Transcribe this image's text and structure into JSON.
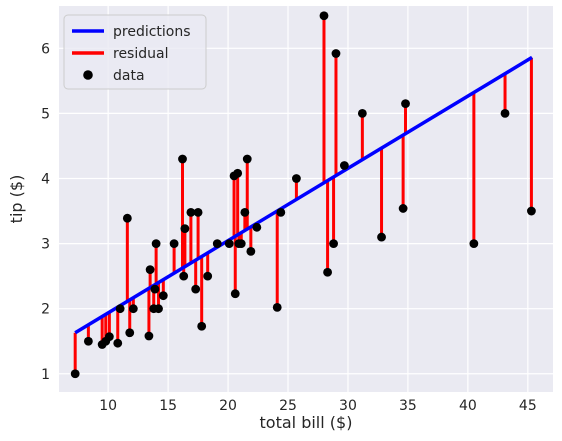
{
  "chart_data": {
    "type": "scatter",
    "xlabel": "total bill ($)",
    "ylabel": "tip ($)",
    "xlim": [
      5.9,
      47.1
    ],
    "ylim": [
      0.72,
      6.65
    ],
    "x_ticks": [
      10,
      15,
      20,
      25,
      30,
      35,
      40,
      45
    ],
    "y_ticks": [
      1,
      2,
      3,
      4,
      5,
      6
    ],
    "grid": true,
    "legend_position": "top-left",
    "regression_line": {
      "x": [
        7.25,
        45.35
      ],
      "y": [
        1.63,
        5.86
      ]
    },
    "legend": [
      {
        "label": "predictions",
        "kind": "line",
        "color": "#0000ff"
      },
      {
        "label": "residual",
        "kind": "line",
        "color": "#ff0000"
      },
      {
        "label": "data",
        "kind": "marker",
        "color": "#000000"
      }
    ],
    "colors": {
      "background": "#eaeaf2",
      "grid": "#ffffff",
      "prediction": "#0000ff",
      "residual": "#ff0000",
      "point": "#000000"
    },
    "series": [
      {
        "name": "data",
        "x": [
          7.25,
          8.35,
          9.5,
          9.8,
          10.1,
          10.8,
          11.0,
          11.6,
          11.8,
          12.1,
          13.4,
          13.5,
          13.8,
          13.9,
          14.0,
          14.2,
          14.6,
          15.5,
          16.2,
          16.3,
          16.4,
          16.9,
          17.3,
          17.5,
          17.8,
          18.3,
          19.1,
          20.1,
          20.5,
          20.6,
          20.8,
          20.9,
          21.1,
          21.4,
          21.6,
          21.9,
          22.4,
          24.1,
          24.4,
          25.7,
          28.0,
          28.3,
          28.8,
          29.0,
          29.7,
          31.2,
          32.8,
          34.6,
          34.8,
          40.5,
          43.1,
          45.3
        ],
        "y": [
          1.0,
          1.5,
          1.45,
          1.5,
          1.57,
          1.47,
          2.0,
          3.39,
          1.63,
          2.0,
          1.58,
          2.6,
          2.0,
          2.3,
          3.0,
          2.0,
          2.2,
          3.0,
          4.3,
          2.5,
          3.23,
          3.48,
          2.3,
          3.48,
          1.73,
          2.5,
          3.0,
          3.0,
          4.04,
          2.23,
          4.08,
          3.0,
          3.0,
          3.48,
          4.3,
          2.88,
          3.25,
          2.02,
          3.48,
          4.0,
          6.5,
          2.56,
          3.0,
          5.92,
          4.2,
          5.0,
          3.1,
          3.54,
          5.15,
          3.0,
          5.0,
          3.5
        ]
      }
    ]
  }
}
